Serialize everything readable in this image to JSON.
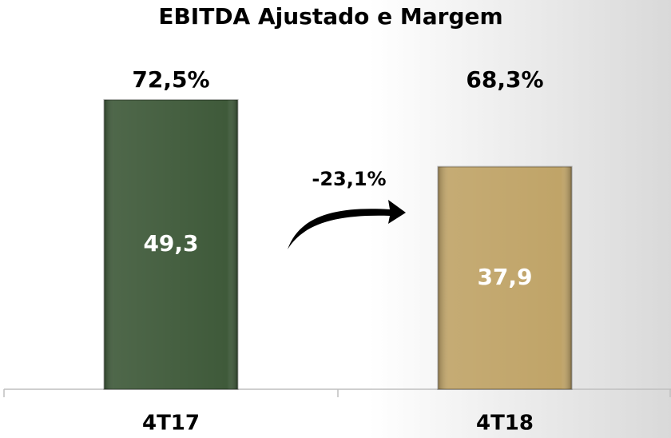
{
  "chart_data": {
    "type": "bar",
    "title": "EBITDA Ajustado e Margem",
    "categories": [
      "4T17",
      "4T18"
    ],
    "values": [
      49.3,
      37.9
    ],
    "value_labels": [
      "49,3",
      "37,9"
    ],
    "colors": [
      "#3f5a3a",
      "#c0a468"
    ],
    "margin_labels": [
      "72,5%",
      "68,3%"
    ],
    "annotation": "-23,1%",
    "ylim": [
      0,
      58
    ]
  }
}
